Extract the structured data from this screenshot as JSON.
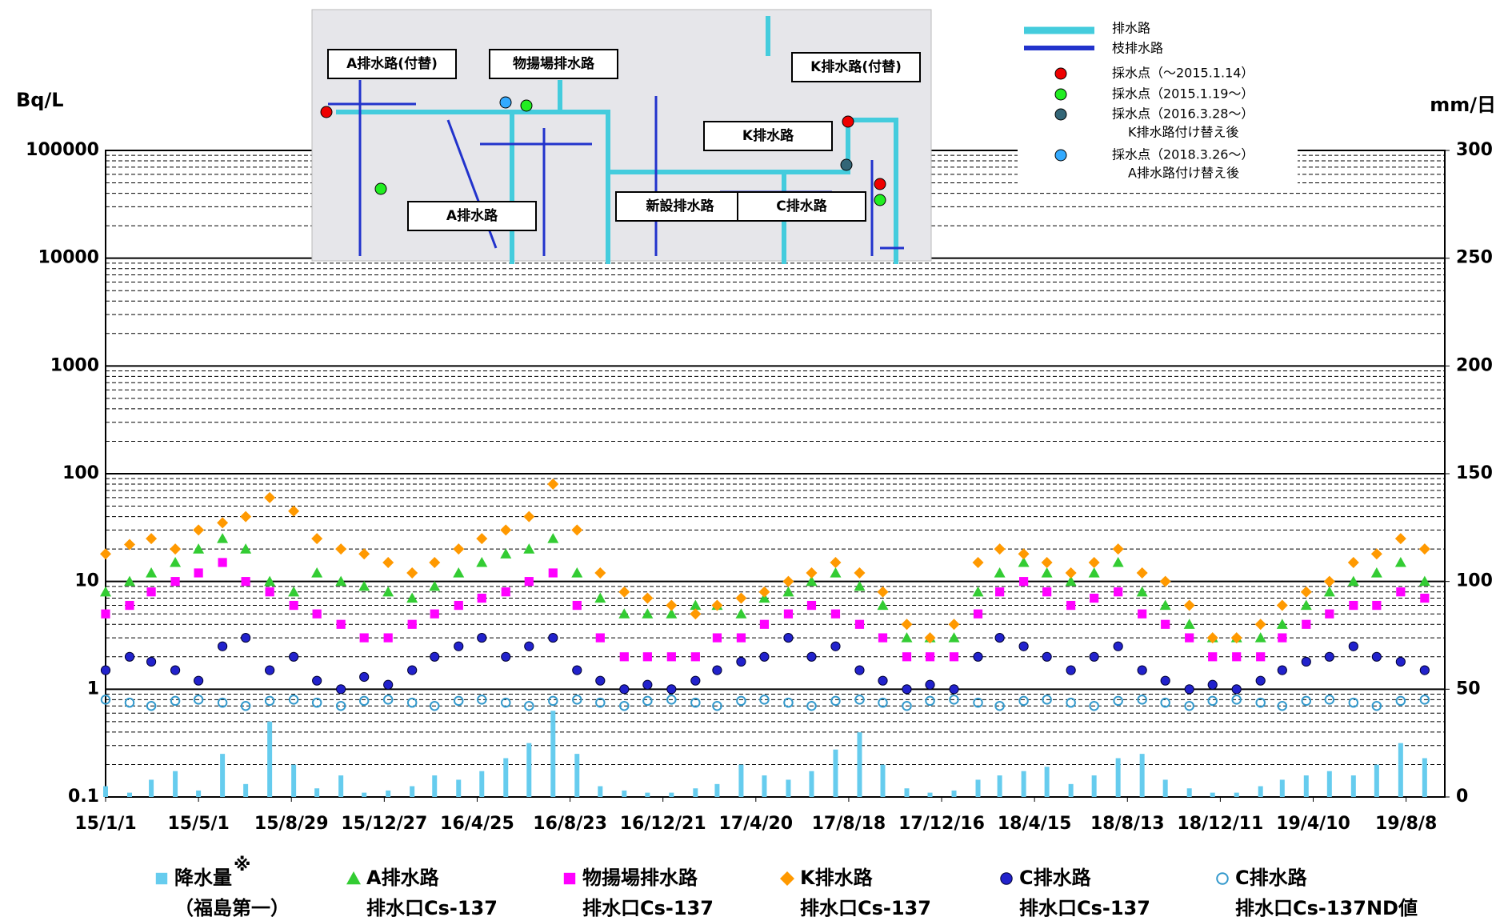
{
  "chart_data": {
    "type": "scatter",
    "y_label": "Bq/L",
    "y2_label": "mm/日",
    "log_y": true,
    "grid": true,
    "minor_grid": true,
    "xlim": [
      "15/1/1",
      "19/9/27"
    ],
    "xticks": [
      "15/1/1",
      "15/5/1",
      "15/8/29",
      "15/12/27",
      "16/4/25",
      "16/8/23",
      "16/12/21",
      "17/4/20",
      "17/8/18",
      "17/12/16",
      "18/4/15",
      "18/8/13",
      "18/12/11",
      "19/4/10",
      "19/8/8"
    ],
    "ylim": [
      0.1,
      100000
    ],
    "yticks": [
      0.1,
      1,
      10,
      100,
      1000,
      10000,
      100000
    ],
    "y2lim": [
      0,
      300
    ],
    "y2ticks": [
      0,
      50,
      100,
      150,
      200,
      250,
      300
    ],
    "x": [
      "15/1/1",
      "15/2/1",
      "15/3/1",
      "15/4/1",
      "15/5/1",
      "15/6/1",
      "15/7/1",
      "15/8/1",
      "15/9/1",
      "15/10/1",
      "15/11/1",
      "15/12/1",
      "16/1/1",
      "16/2/1",
      "16/3/1",
      "16/4/1",
      "16/5/1",
      "16/6/1",
      "16/7/1",
      "16/8/1",
      "16/9/1",
      "16/10/1",
      "16/11/1",
      "16/12/1",
      "17/1/1",
      "17/2/1",
      "17/3/1",
      "17/4/1",
      "17/5/1",
      "17/6/1",
      "17/7/1",
      "17/8/1",
      "17/9/1",
      "17/10/1",
      "17/11/1",
      "17/12/1",
      "18/1/1",
      "18/2/1",
      "18/3/1",
      "18/4/1",
      "18/5/1",
      "18/6/1",
      "18/7/1",
      "18/8/1",
      "18/9/1",
      "18/10/1",
      "18/11/1",
      "18/12/1",
      "19/1/1",
      "19/2/1",
      "19/3/1",
      "19/4/1",
      "19/5/1",
      "19/6/1",
      "19/7/1",
      "19/8/1",
      "19/9/1"
    ],
    "series": [
      {
        "name": "降水量",
        "name_mark": "※",
        "name_line2": "（福島第一）",
        "type": "bar",
        "axis": "y2",
        "marker": "square",
        "color": "#66ccee",
        "values": [
          5,
          2,
          8,
          12,
          3,
          20,
          6,
          35,
          15,
          4,
          10,
          2,
          3,
          5,
          10,
          8,
          12,
          18,
          25,
          40,
          20,
          5,
          3,
          2,
          2,
          4,
          6,
          15,
          10,
          8,
          12,
          22,
          30,
          15,
          4,
          2,
          3,
          8,
          10,
          12,
          14,
          6,
          10,
          18,
          20,
          8,
          4,
          2,
          2,
          5,
          8,
          10,
          12,
          10,
          15,
          25,
          18
        ]
      },
      {
        "name": "A排水路",
        "name_line2": "排水口Cs-137",
        "marker": "triangle",
        "color": "#33cc33",
        "values": [
          8,
          10,
          12,
          15,
          20,
          25,
          20,
          10,
          8,
          12,
          10,
          9,
          8,
          7,
          9,
          12,
          15,
          18,
          20,
          25,
          12,
          7,
          5,
          5,
          5,
          6,
          6,
          5,
          7,
          8,
          10,
          12,
          9,
          6,
          3,
          3,
          3,
          8,
          12,
          15,
          12,
          10,
          12,
          15,
          8,
          6,
          4,
          3,
          3,
          3,
          4,
          6,
          8,
          10,
          12,
          15,
          10
        ]
      },
      {
        "name": "物揚場排水路",
        "name_line2": "排水口Cs-137",
        "marker": "square",
        "color": "#ff00ff",
        "values": [
          5,
          6,
          8,
          10,
          12,
          15,
          10,
          8,
          6,
          5,
          4,
          3,
          3,
          4,
          5,
          6,
          7,
          8,
          10,
          12,
          6,
          3,
          2,
          2,
          2,
          2,
          3,
          3,
          4,
          5,
          6,
          5,
          4,
          3,
          2,
          2,
          2,
          5,
          8,
          10,
          8,
          6,
          7,
          8,
          5,
          4,
          3,
          2,
          2,
          2,
          3,
          4,
          5,
          6,
          6,
          8,
          7
        ]
      },
      {
        "name": "K排水路",
        "name_line2": "排水口Cs-137",
        "marker": "diamond",
        "color": "#ff9900",
        "values": [
          18,
          22,
          25,
          20,
          30,
          35,
          40,
          60,
          45,
          25,
          20,
          18,
          15,
          12,
          15,
          20,
          25,
          30,
          40,
          80,
          30,
          12,
          8,
          7,
          6,
          5,
          6,
          7,
          8,
          10,
          12,
          15,
          12,
          8,
          4,
          3,
          4,
          15,
          20,
          18,
          15,
          12,
          15,
          20,
          12,
          10,
          6,
          3,
          3,
          4,
          6,
          8,
          10,
          15,
          18,
          25,
          20
        ]
      },
      {
        "name": "C排水路",
        "name_line2": "排水口Cs-137",
        "marker": "circle",
        "color": "#2222cc",
        "values": [
          1.5,
          2,
          1.8,
          1.5,
          1.2,
          2.5,
          3,
          1.5,
          2,
          1.2,
          1,
          1.3,
          1.1,
          1.5,
          2,
          2.5,
          3,
          2,
          2.5,
          3,
          1.5,
          1.2,
          1,
          1.1,
          1,
          1.2,
          1.5,
          1.8,
          2,
          3,
          2,
          2.5,
          1.5,
          1.2,
          1,
          1.1,
          1,
          2,
          3,
          2.5,
          2,
          1.5,
          2,
          2.5,
          1.5,
          1.2,
          1,
          1.1,
          1,
          1.2,
          1.5,
          1.8,
          2,
          2.5,
          2,
          1.8,
          1.5
        ]
      },
      {
        "name": "C排水路",
        "name_line2": "排水口Cs-137ND値",
        "marker": "hollow",
        "color": "#3399cc",
        "values": [
          0.8,
          0.75,
          0.7,
          0.78,
          0.8,
          0.75,
          0.7,
          0.78,
          0.8,
          0.75,
          0.7,
          0.78,
          0.8,
          0.75,
          0.7,
          0.78,
          0.8,
          0.75,
          0.7,
          0.78,
          0.8,
          0.75,
          0.7,
          0.78,
          0.8,
          0.75,
          0.7,
          0.78,
          0.8,
          0.75,
          0.7,
          0.78,
          0.8,
          0.75,
          0.7,
          0.78,
          0.8,
          0.75,
          0.7,
          0.78,
          0.8,
          0.75,
          0.7,
          0.78,
          0.8,
          0.75,
          0.7,
          0.78,
          0.8,
          0.75,
          0.7,
          0.78,
          0.8,
          0.75,
          0.7,
          0.78,
          0.8
        ]
      }
    ]
  },
  "inset": {
    "labels": [
      "A排水路(付替)",
      "物揚場排水路",
      "K排水路(付替)",
      "K排水路",
      "A排水路",
      "新設排水路",
      "C排水路"
    ],
    "legend": [
      "排水路",
      "枝排水路",
      "採水点（～2015.1.14）",
      "採水点（2015.1.19～）",
      "採水点（2016.3.28～）",
      "K排水路付け替え後",
      "採水点（2018.3.26～）",
      "A排水路付け替え後"
    ]
  }
}
